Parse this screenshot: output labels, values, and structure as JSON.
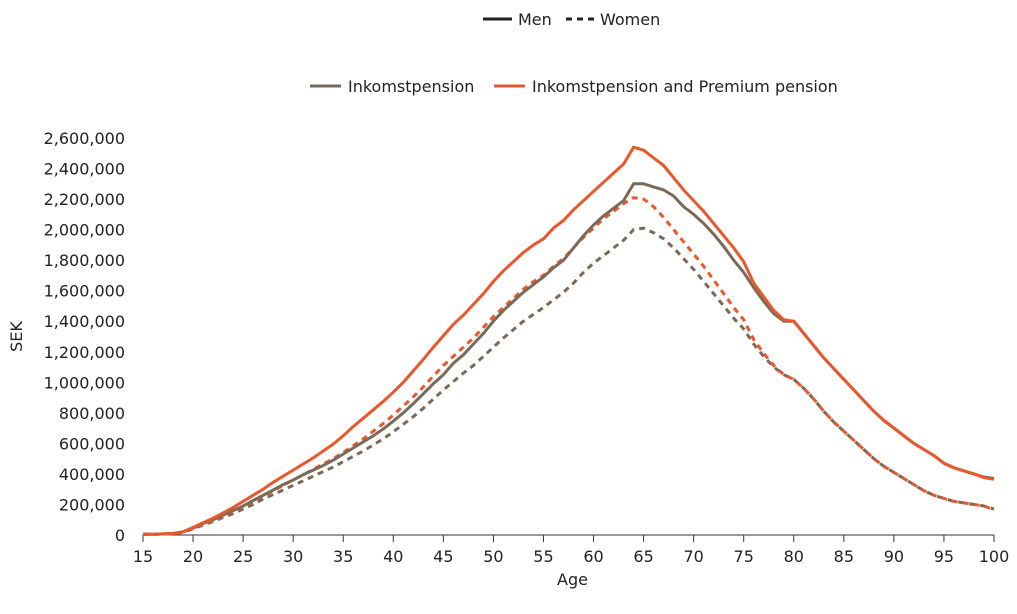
{
  "chart_data": {
    "type": "line",
    "xlabel": "Age",
    "ylabel": "SEK",
    "xlim": [
      15,
      100
    ],
    "ylim": [
      0,
      2600000
    ],
    "x_ticks": [
      "15",
      "20",
      "25",
      "30",
      "35",
      "40",
      "45",
      "50",
      "55",
      "60",
      "65",
      "70",
      "75",
      "80",
      "85",
      "90",
      "95",
      "100"
    ],
    "y_ticks": [
      "0",
      "200,000",
      "400,000",
      "600,000",
      "800,000",
      "1,000,000",
      "1,200,000",
      "1,400,000",
      "1,600,000",
      "1,800,000",
      "2,000,000",
      "2,200,000",
      "2,400,000",
      "2,600,000"
    ],
    "grid": false,
    "legend_position": "top-center",
    "legend_style": {
      "men": "Men",
      "women": "Women"
    },
    "legend_series": {
      "inkomst": "Inkomstpension",
      "premium": "Inkomstpension and Premium pension"
    },
    "colors": {
      "inkomst": "#7a6a58",
      "premium": "#e8582c",
      "axis": "#333333",
      "text": "#222222"
    },
    "x": [
      15,
      16,
      17,
      18,
      19,
      20,
      21,
      22,
      23,
      24,
      25,
      26,
      27,
      28,
      29,
      30,
      31,
      32,
      33,
      34,
      35,
      36,
      37,
      38,
      39,
      40,
      41,
      42,
      43,
      44,
      45,
      46,
      47,
      48,
      49,
      50,
      51,
      52,
      53,
      54,
      55,
      56,
      57,
      58,
      59,
      60,
      61,
      62,
      63,
      64,
      65,
      66,
      67,
      68,
      69,
      70,
      71,
      72,
      73,
      74,
      75,
      76,
      77,
      78,
      79,
      80,
      81,
      82,
      83,
      84,
      85,
      86,
      87,
      88,
      89,
      90,
      91,
      92,
      93,
      94,
      95,
      96,
      97,
      98,
      99,
      100
    ],
    "series": [
      {
        "name": "Inkomstpension",
        "gender": "Men",
        "color": "#7a6a58",
        "dash": "solid",
        "values": [
          5000,
          5000,
          7000,
          10000,
          20000,
          45000,
          75000,
          100000,
          130000,
          160000,
          190000,
          225000,
          260000,
          295000,
          330000,
          360000,
          395000,
          425000,
          455000,
          490000,
          530000,
          570000,
          610000,
          650000,
          695000,
          745000,
          800000,
          860000,
          925000,
          990000,
          1050000,
          1125000,
          1180000,
          1250000,
          1320000,
          1400000,
          1470000,
          1530000,
          1590000,
          1640000,
          1690000,
          1750000,
          1800000,
          1880000,
          1960000,
          2030000,
          2090000,
          2140000,
          2190000,
          2300000,
          2300000,
          2280000,
          2260000,
          2220000,
          2150000,
          2100000,
          2040000,
          1970000,
          1890000,
          1800000,
          1720000,
          1620000,
          1530000,
          1450000,
          1400000,
          1400000,
          1320000,
          1240000,
          1160000,
          1090000,
          1020000,
          950000,
          880000,
          810000,
          750000,
          700000,
          650000,
          600000,
          560000,
          520000,
          470000,
          440000,
          420000,
          400000,
          380000,
          370000
        ]
      },
      {
        "name": "Inkomstpension",
        "gender": "Women",
        "color": "#7a6a58",
        "dash": "dashed",
        "values": [
          5000,
          5000,
          6000,
          9000,
          18000,
          40000,
          65000,
          88000,
          115000,
          140000,
          170000,
          200000,
          235000,
          265000,
          295000,
          325000,
          355000,
          385000,
          415000,
          445000,
          480000,
          515000,
          550000,
          590000,
          630000,
          675000,
          725000,
          775000,
          830000,
          890000,
          950000,
          1005000,
          1060000,
          1110000,
          1170000,
          1230000,
          1290000,
          1345000,
          1400000,
          1445000,
          1490000,
          1540000,
          1590000,
          1650000,
          1720000,
          1780000,
          1830000,
          1880000,
          1930000,
          2000000,
          2010000,
          1980000,
          1940000,
          1880000,
          1810000,
          1740000,
          1660000,
          1580000,
          1500000,
          1420000,
          1350000,
          1250000,
          1170000,
          1100000,
          1050000,
          1020000,
          960000,
          890000,
          810000,
          740000,
          680000,
          620000,
          560000,
          500000,
          450000,
          410000,
          370000,
          330000,
          290000,
          260000,
          240000,
          220000,
          210000,
          200000,
          190000,
          170000
        ]
      },
      {
        "name": "Inkomstpension and Premium pension",
        "gender": "Men",
        "color": "#e8582c",
        "dash": "solid",
        "values": [
          5000,
          5000,
          7000,
          10000,
          20000,
          50000,
          80000,
          110000,
          145000,
          180000,
          220000,
          260000,
          300000,
          345000,
          385000,
          425000,
          465000,
          505000,
          550000,
          595000,
          650000,
          710000,
          765000,
          820000,
          875000,
          935000,
          1000000,
          1075000,
          1150000,
          1230000,
          1305000,
          1380000,
          1440000,
          1510000,
          1580000,
          1660000,
          1730000,
          1790000,
          1850000,
          1900000,
          1940000,
          2010000,
          2060000,
          2130000,
          2190000,
          2250000,
          2310000,
          2370000,
          2430000,
          2540000,
          2520000,
          2470000,
          2420000,
          2340000,
          2260000,
          2190000,
          2120000,
          2040000,
          1960000,
          1880000,
          1790000,
          1650000,
          1560000,
          1470000,
          1410000,
          1400000,
          1320000,
          1240000,
          1160000,
          1090000,
          1020000,
          950000,
          880000,
          810000,
          750000,
          700000,
          650000,
          600000,
          560000,
          520000,
          470000,
          440000,
          420000,
          400000,
          375000,
          365000
        ]
      },
      {
        "name": "Inkomstpension and Premium pension",
        "gender": "Women",
        "color": "#e8582c",
        "dash": "dashed",
        "values": [
          5000,
          5000,
          6000,
          9000,
          18000,
          42000,
          68000,
          95000,
          125000,
          155000,
          185000,
          220000,
          255000,
          290000,
          325000,
          360000,
          395000,
          430000,
          465000,
          500000,
          540000,
          585000,
          630000,
          680000,
          730000,
          785000,
          845000,
          905000,
          970000,
          1040000,
          1110000,
          1170000,
          1230000,
          1290000,
          1360000,
          1430000,
          1490000,
          1550000,
          1610000,
          1660000,
          1700000,
          1760000,
          1810000,
          1880000,
          1950000,
          2010000,
          2070000,
          2120000,
          2170000,
          2210000,
          2200000,
          2150000,
          2080000,
          2000000,
          1920000,
          1840000,
          1760000,
          1670000,
          1580000,
          1490000,
          1410000,
          1280000,
          1190000,
          1110000,
          1050000,
          1020000,
          960000,
          890000,
          810000,
          740000,
          680000,
          620000,
          560000,
          500000,
          450000,
          410000,
          370000,
          330000,
          290000,
          260000,
          240000,
          220000,
          210000,
          200000,
          190000,
          165000
        ]
      }
    ]
  }
}
